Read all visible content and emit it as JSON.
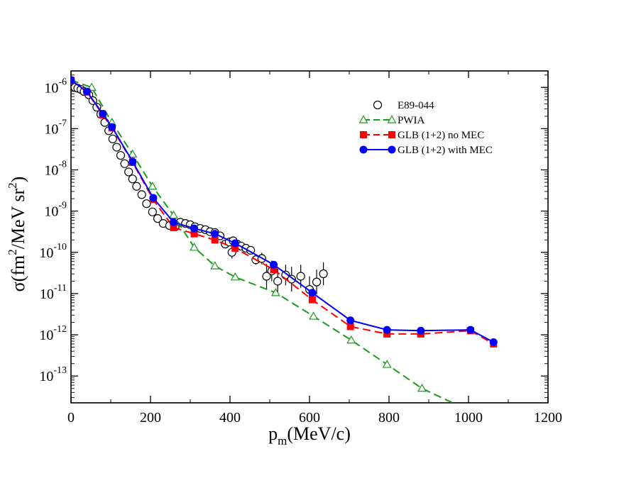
{
  "chart_data": {
    "type": "scatter",
    "title": "",
    "xlabel": {
      "base": "p",
      "sub": "m",
      "rest": "(MeV/c)"
    },
    "ylabel": {
      "p1": "σ(fm",
      "sup1": "2",
      "p2": "/MeV sr",
      "sup2": "2",
      "p3": ")"
    },
    "xlim": [
      0,
      1200
    ],
    "ylim_log10": [
      -13.65,
      -5.6
    ],
    "yscale": "log",
    "x_ticks": [
      0,
      200,
      400,
      600,
      800,
      1000,
      1200
    ],
    "x_tick_labels": [
      "0",
      "200",
      "400",
      "600",
      "800",
      "1000",
      "1200"
    ],
    "y_ticks_log10": [
      -6,
      -7,
      -8,
      -9,
      -10,
      -11,
      -12,
      -13
    ],
    "y_tick_labels": [
      {
        "base": "10",
        "exp": "-6"
      },
      {
        "base": "10",
        "exp": "-7"
      },
      {
        "base": "10",
        "exp": "-8"
      },
      {
        "base": "10",
        "exp": "-9"
      },
      {
        "base": "10",
        "exp": "-10"
      },
      {
        "base": "10",
        "exp": "-11"
      },
      {
        "base": "10",
        "exp": "-12"
      },
      {
        "base": "10",
        "exp": "-13"
      }
    ],
    "legend_position": "top-right",
    "series": [
      {
        "name": "E89-044",
        "style": "open-circle-errorbar",
        "color": "#000000",
        "points": [
          {
            "x": 10,
            "y": -6.0,
            "err": 0.03
          },
          {
            "x": 17,
            "y": -6.02,
            "err": 0.03
          },
          {
            "x": 25,
            "y": -6.05,
            "err": 0.03
          },
          {
            "x": 33,
            "y": -6.1,
            "err": 0.03
          },
          {
            "x": 45,
            "y": -6.18,
            "err": 0.03
          },
          {
            "x": 55,
            "y": -6.32,
            "err": 0.03
          },
          {
            "x": 65,
            "y": -6.48,
            "err": 0.03
          },
          {
            "x": 75,
            "y": -6.65,
            "err": 0.03
          },
          {
            "x": 85,
            "y": -6.85,
            "err": 0.03
          },
          {
            "x": 95,
            "y": -7.05,
            "err": 0.03
          },
          {
            "x": 105,
            "y": -7.25,
            "err": 0.03
          },
          {
            "x": 115,
            "y": -7.45,
            "err": 0.03
          },
          {
            "x": 125,
            "y": -7.65,
            "err": 0.03
          },
          {
            "x": 135,
            "y": -7.85,
            "err": 0.03
          },
          {
            "x": 145,
            "y": -8.05,
            "err": 0.03
          },
          {
            "x": 155,
            "y": -8.22,
            "err": 0.03
          },
          {
            "x": 165,
            "y": -8.4,
            "err": 0.04
          },
          {
            "x": 178,
            "y": -8.6,
            "err": 0.04
          },
          {
            "x": 190,
            "y": -8.82,
            "err": 0.04
          },
          {
            "x": 205,
            "y": -9.02,
            "err": 0.05
          },
          {
            "x": 218,
            "y": -9.18,
            "err": 0.05
          },
          {
            "x": 232,
            "y": -9.3,
            "err": 0.05
          },
          {
            "x": 248,
            "y": -9.35,
            "err": 0.05
          },
          {
            "x": 262,
            "y": -9.38,
            "err": 0.05
          },
          {
            "x": 275,
            "y": -9.27,
            "err": 0.05
          },
          {
            "x": 288,
            "y": -9.3,
            "err": 0.05
          },
          {
            "x": 300,
            "y": -9.33,
            "err": 0.05
          },
          {
            "x": 312,
            "y": -9.38,
            "err": 0.06
          },
          {
            "x": 325,
            "y": -9.42,
            "err": 0.06
          },
          {
            "x": 338,
            "y": -9.45,
            "err": 0.06
          },
          {
            "x": 350,
            "y": -9.5,
            "err": 0.06
          },
          {
            "x": 362,
            "y": -9.52,
            "err": 0.06
          },
          {
            "x": 375,
            "y": -9.6,
            "err": 0.07
          },
          {
            "x": 388,
            "y": -9.8,
            "err": 0.08
          },
          {
            "x": 398,
            "y": -9.75,
            "err": 0.08
          },
          {
            "x": 408,
            "y": -9.72,
            "err": 0.08
          },
          {
            "x": 418,
            "y": -9.8,
            "err": 0.09
          },
          {
            "x": 428,
            "y": -9.85,
            "err": 0.09
          },
          {
            "x": 440,
            "y": -9.9,
            "err": 0.1
          },
          {
            "x": 452,
            "y": -9.95,
            "err": 0.1
          },
          {
            "x": 465,
            "y": -10.18,
            "err": 0.12
          },
          {
            "x": 480,
            "y": -10.15,
            "err": 0.14
          },
          {
            "x": 405,
            "y": -10.0,
            "err": 0.15
          },
          {
            "x": 492,
            "y": -10.58,
            "err": 0.3
          },
          {
            "x": 505,
            "y": -10.45,
            "err": 0.25
          },
          {
            "x": 520,
            "y": -10.7,
            "err": 0.3
          },
          {
            "x": 540,
            "y": -10.55,
            "err": 0.25
          },
          {
            "x": 555,
            "y": -10.65,
            "err": 0.3
          },
          {
            "x": 578,
            "y": -10.58,
            "err": 0.28
          },
          {
            "x": 600,
            "y": -10.9,
            "err": 0.32
          },
          {
            "x": 618,
            "y": -10.72,
            "err": 0.3
          },
          {
            "x": 635,
            "y": -10.52,
            "err": 0.28
          }
        ]
      },
      {
        "name": "PWIA",
        "style": "dashed-open-triangle",
        "color": "#1a9a1a",
        "points": [
          {
            "x": 0,
            "y": -5.82
          },
          {
            "x": 52,
            "y": -6.0
          },
          {
            "x": 103,
            "y": -6.85
          },
          {
            "x": 155,
            "y": -7.62
          },
          {
            "x": 205,
            "y": -8.4
          },
          {
            "x": 258,
            "y": -9.1
          },
          {
            "x": 310,
            "y": -9.88
          },
          {
            "x": 362,
            "y": -10.33
          },
          {
            "x": 413,
            "y": -10.6
          },
          {
            "x": 515,
            "y": -10.98
          },
          {
            "x": 610,
            "y": -11.55
          },
          {
            "x": 705,
            "y": -12.13
          },
          {
            "x": 795,
            "y": -12.72
          },
          {
            "x": 883,
            "y": -13.3
          },
          {
            "x": 960,
            "y": -13.65
          }
        ],
        "marker_count": 14
      },
      {
        "name": "GLB (1+2) no MEC",
        "style": "dashed-filled-square",
        "color": "#ff0000",
        "points": [
          {
            "x": 0,
            "y": -5.83
          },
          {
            "x": 40,
            "y": -6.11
          },
          {
            "x": 80,
            "y": -6.67
          },
          {
            "x": 103,
            "y": -6.98
          },
          {
            "x": 155,
            "y": -7.82
          },
          {
            "x": 207,
            "y": -8.72
          },
          {
            "x": 258,
            "y": -9.4
          },
          {
            "x": 310,
            "y": -9.55
          },
          {
            "x": 362,
            "y": -9.7
          },
          {
            "x": 413,
            "y": -9.9
          },
          {
            "x": 510,
            "y": -10.42
          },
          {
            "x": 607,
            "y": -11.15
          },
          {
            "x": 703,
            "y": -11.8
          },
          {
            "x": 795,
            "y": -11.98
          },
          {
            "x": 880,
            "y": -11.98
          },
          {
            "x": 1005,
            "y": -11.9
          },
          {
            "x": 1063,
            "y": -12.22
          }
        ]
      },
      {
        "name": "GLB (1+2) with MEC",
        "style": "solid-filled-circle",
        "color": "#0000ff",
        "points": [
          {
            "x": 0,
            "y": -5.82
          },
          {
            "x": 40,
            "y": -6.1
          },
          {
            "x": 80,
            "y": -6.64
          },
          {
            "x": 103,
            "y": -6.96
          },
          {
            "x": 155,
            "y": -7.8
          },
          {
            "x": 207,
            "y": -8.68
          },
          {
            "x": 258,
            "y": -9.27
          },
          {
            "x": 310,
            "y": -9.42
          },
          {
            "x": 362,
            "y": -9.55
          },
          {
            "x": 413,
            "y": -9.78
          },
          {
            "x": 510,
            "y": -10.3
          },
          {
            "x": 607,
            "y": -10.98
          },
          {
            "x": 703,
            "y": -11.65
          },
          {
            "x": 795,
            "y": -11.88
          },
          {
            "x": 880,
            "y": -11.9
          },
          {
            "x": 1005,
            "y": -11.88
          },
          {
            "x": 1063,
            "y": -12.18
          }
        ]
      }
    ]
  }
}
